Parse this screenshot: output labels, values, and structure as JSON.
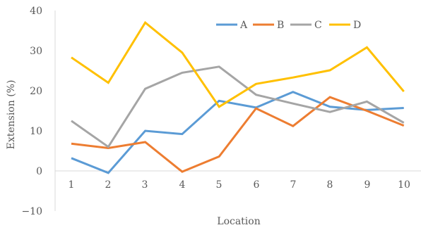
{
  "chart_data": {
    "type": "line",
    "xlabel": "Location",
    "ylabel": "Extension (%)",
    "ylim": [
      -10,
      40
    ],
    "yticks": [
      "40",
      "30",
      "20",
      "10",
      "0",
      "−10"
    ],
    "categories": [
      "1",
      "2",
      "3",
      "4",
      "5",
      "6",
      "7",
      "8",
      "9",
      "10"
    ],
    "grid": false,
    "legend_position": "top-right",
    "series": [
      {
        "name": "A",
        "color": "#5B9BD5",
        "values": [
          3.2,
          -0.5,
          10.0,
          9.2,
          17.5,
          15.8,
          19.7,
          16.0,
          15.2,
          15.7
        ]
      },
      {
        "name": "B",
        "color": "#ED7D31",
        "values": [
          6.8,
          5.7,
          7.2,
          -0.2,
          3.6,
          15.6,
          11.2,
          18.4,
          15.0,
          11.3
        ]
      },
      {
        "name": "C",
        "color": "#A5A5A5",
        "values": [
          12.5,
          6.0,
          20.5,
          24.5,
          26.0,
          19.0,
          16.8,
          14.7,
          17.3,
          12.0
        ]
      },
      {
        "name": "D",
        "color": "#FFC000",
        "values": [
          28.3,
          22.0,
          37.0,
          29.5,
          16.0,
          21.7,
          23.3,
          25.1,
          30.8,
          19.8
        ]
      }
    ]
  }
}
